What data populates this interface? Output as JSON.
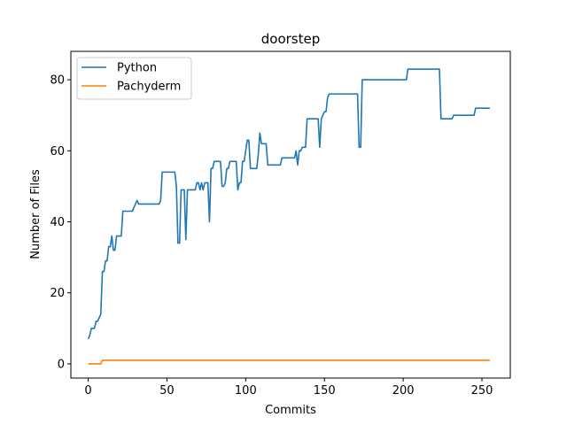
{
  "chart_data": {
    "type": "line",
    "title": "doorstep",
    "xlabel": "Commits",
    "ylabel": "Number of Files",
    "xlim": [
      -11,
      268
    ],
    "ylim": [
      -4,
      88
    ],
    "xticks": [
      0,
      50,
      100,
      150,
      200,
      250
    ],
    "yticks": [
      0,
      20,
      40,
      60,
      80
    ],
    "grid": false,
    "legend_position": "top-left",
    "series": [
      {
        "name": "Python",
        "color": "#1f77b4",
        "points": [
          [
            0,
            7
          ],
          [
            1,
            8
          ],
          [
            2,
            10
          ],
          [
            4,
            10
          ],
          [
            5,
            12
          ],
          [
            6,
            12
          ],
          [
            7,
            13
          ],
          [
            8,
            14
          ],
          [
            9,
            26
          ],
          [
            10,
            26
          ],
          [
            11,
            29
          ],
          [
            12,
            29
          ],
          [
            13,
            33
          ],
          [
            14,
            33
          ],
          [
            15,
            36
          ],
          [
            16,
            32
          ],
          [
            17,
            32
          ],
          [
            18,
            36
          ],
          [
            21,
            36
          ],
          [
            22,
            43
          ],
          [
            28,
            43
          ],
          [
            30,
            45
          ],
          [
            31,
            46
          ],
          [
            32,
            45
          ],
          [
            45,
            45
          ],
          [
            46,
            46
          ],
          [
            47,
            54
          ],
          [
            55,
            54
          ],
          [
            56,
            50
          ],
          [
            57,
            34
          ],
          [
            58,
            34
          ],
          [
            59,
            49
          ],
          [
            61,
            49
          ],
          [
            62,
            35
          ],
          [
            63,
            49
          ],
          [
            68,
            49
          ],
          [
            69,
            51
          ],
          [
            70,
            51
          ],
          [
            71,
            49
          ],
          [
            72,
            51
          ],
          [
            73,
            49
          ],
          [
            74,
            51
          ],
          [
            75,
            51
          ],
          [
            76,
            51
          ],
          [
            77,
            40
          ],
          [
            78,
            55
          ],
          [
            79,
            55
          ],
          [
            80,
            57
          ],
          [
            84,
            57
          ],
          [
            85,
            50
          ],
          [
            86,
            50
          ],
          [
            87,
            51
          ],
          [
            88,
            55
          ],
          [
            89,
            55
          ],
          [
            90,
            57
          ],
          [
            94,
            57
          ],
          [
            95,
            49
          ],
          [
            96,
            51
          ],
          [
            97,
            51
          ],
          [
            98,
            57
          ],
          [
            99,
            57
          ],
          [
            100,
            60
          ],
          [
            101,
            63
          ],
          [
            102,
            63
          ],
          [
            103,
            55
          ],
          [
            104,
            55
          ],
          [
            107,
            55
          ],
          [
            108,
            59
          ],
          [
            109,
            65
          ],
          [
            110,
            62
          ],
          [
            113,
            62
          ],
          [
            114,
            56
          ],
          [
            122,
            56
          ],
          [
            123,
            58
          ],
          [
            131,
            58
          ],
          [
            132,
            60
          ],
          [
            133,
            56
          ],
          [
            134,
            60
          ],
          [
            135,
            60
          ],
          [
            136,
            61
          ],
          [
            138,
            61
          ],
          [
            139,
            69
          ],
          [
            146,
            69
          ],
          [
            147,
            61
          ],
          [
            148,
            69
          ],
          [
            149,
            70
          ],
          [
            150,
            71
          ],
          [
            151,
            71
          ],
          [
            152,
            75
          ],
          [
            153,
            76
          ],
          [
            171,
            76
          ],
          [
            172,
            61
          ],
          [
            173,
            61
          ],
          [
            174,
            80
          ],
          [
            202,
            80
          ],
          [
            203,
            83
          ],
          [
            223,
            83
          ],
          [
            224,
            69
          ],
          [
            231,
            69
          ],
          [
            232,
            70
          ],
          [
            245,
            70
          ],
          [
            246,
            72
          ],
          [
            255,
            72
          ]
        ]
      },
      {
        "name": "Pachyderm",
        "color": "#ff7f0e",
        "points": [
          [
            0,
            0
          ],
          [
            8,
            0
          ],
          [
            9,
            1
          ],
          [
            255,
            1
          ]
        ]
      }
    ]
  }
}
